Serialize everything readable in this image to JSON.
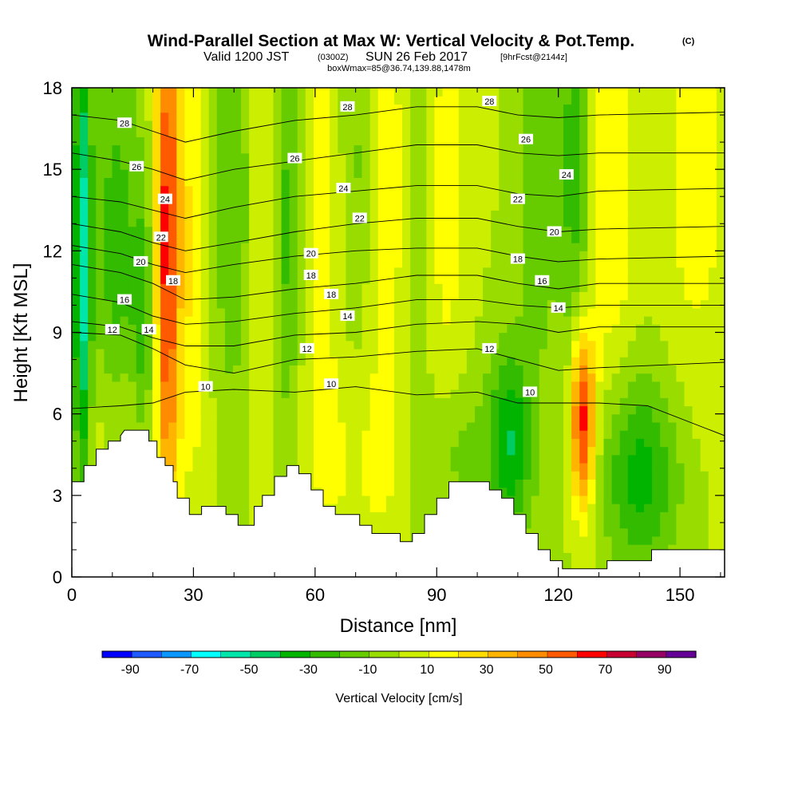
{
  "title": {
    "main": "Wind-Parallel Section at Max W: Vertical Velocity & Pot.Temp.",
    "copyright": "(C)",
    "valid_prefix": "Valid 1200 JST",
    "valid_utc": "(0300Z)",
    "valid_date": "SUN 26 Feb 2017",
    "fcst": "[9hrFcst@2144z]",
    "box": "boxWmax=85@36.74,139.88,1478m"
  },
  "chart_data": {
    "type": "heatmap",
    "xlabel": "Distance [nm]",
    "ylabel": "Height [Kft MSL]",
    "xlim": [
      0,
      161
    ],
    "ylim": [
      0,
      18
    ],
    "xticks": [
      0,
      30,
      60,
      90,
      120,
      150
    ],
    "yticks": [
      0,
      3,
      6,
      9,
      12,
      15,
      18
    ],
    "xtick_labels": [
      "0",
      "30",
      "60",
      "90",
      "120",
      "150"
    ],
    "ytick_labels": [
      "0",
      "3",
      "6",
      "9",
      "12",
      "15",
      "18"
    ],
    "colorbar": {
      "label": "Vertical Velocity [cm/s]",
      "levels": [
        -100,
        -80,
        -60,
        -40,
        -20,
        -10,
        -5,
        5,
        10,
        20,
        40,
        60,
        80,
        100
      ],
      "bins": [
        -90,
        -80,
        -70,
        -60,
        -50,
        -40,
        -30,
        -20,
        -10,
        0,
        10,
        20,
        30,
        40,
        50,
        60,
        70,
        80,
        90
      ],
      "tick_labels": [
        "-90",
        "-70",
        "-50",
        "-30",
        "-10",
        "10",
        "30",
        "50",
        "70",
        "90"
      ],
      "colors": [
        "#0000ff",
        "#1e5aff",
        "#0a96ff",
        "#00ffff",
        "#00e6aa",
        "#00cc66",
        "#00b400",
        "#33bb00",
        "#66cc00",
        "#99dd00",
        "#ccee00",
        "#ffff00",
        "#ffdd00",
        "#ffb400",
        "#ff8c00",
        "#ff5a00",
        "#ff0000",
        "#c80032",
        "#960064",
        "#640096"
      ]
    },
    "terrain": [
      {
        "x": 0,
        "h": 3.5
      },
      {
        "x": 3,
        "h": 3.5
      },
      {
        "x": 3,
        "h": 4.1
      },
      {
        "x": 6,
        "h": 4.1
      },
      {
        "x": 6,
        "h": 4.7
      },
      {
        "x": 9,
        "h": 4.7
      },
      {
        "x": 9,
        "h": 5.0
      },
      {
        "x": 12,
        "h": 5.0
      },
      {
        "x": 12,
        "h": 5.2
      },
      {
        "x": 13,
        "h": 5.4
      },
      {
        "x": 19,
        "h": 5.4
      },
      {
        "x": 19,
        "h": 5.0
      },
      {
        "x": 21,
        "h": 5.0
      },
      {
        "x": 21,
        "h": 4.4
      },
      {
        "x": 23,
        "h": 4.4
      },
      {
        "x": 23,
        "h": 4.1
      },
      {
        "x": 25,
        "h": 4.1
      },
      {
        "x": 25,
        "h": 3.5
      },
      {
        "x": 26,
        "h": 3.5
      },
      {
        "x": 26,
        "h": 2.9
      },
      {
        "x": 29,
        "h": 2.9
      },
      {
        "x": 29,
        "h": 2.3
      },
      {
        "x": 32,
        "h": 2.3
      },
      {
        "x": 32,
        "h": 2.6
      },
      {
        "x": 38,
        "h": 2.6
      },
      {
        "x": 38,
        "h": 2.3
      },
      {
        "x": 41,
        "h": 2.3
      },
      {
        "x": 41,
        "h": 1.9
      },
      {
        "x": 45,
        "h": 1.9
      },
      {
        "x": 45,
        "h": 2.6
      },
      {
        "x": 47,
        "h": 2.6
      },
      {
        "x": 47,
        "h": 3.0
      },
      {
        "x": 50,
        "h": 3.0
      },
      {
        "x": 50,
        "h": 3.7
      },
      {
        "x": 53,
        "h": 3.7
      },
      {
        "x": 53,
        "h": 4.1
      },
      {
        "x": 56,
        "h": 4.1
      },
      {
        "x": 56,
        "h": 3.8
      },
      {
        "x": 59,
        "h": 3.8
      },
      {
        "x": 59,
        "h": 3.2
      },
      {
        "x": 62,
        "h": 3.2
      },
      {
        "x": 62,
        "h": 2.6
      },
      {
        "x": 65,
        "h": 2.6
      },
      {
        "x": 65,
        "h": 2.3
      },
      {
        "x": 71,
        "h": 2.3
      },
      {
        "x": 71,
        "h": 1.9
      },
      {
        "x": 74,
        "h": 1.9
      },
      {
        "x": 74,
        "h": 1.6
      },
      {
        "x": 81,
        "h": 1.6
      },
      {
        "x": 81,
        "h": 1.3
      },
      {
        "x": 84,
        "h": 1.3
      },
      {
        "x": 84,
        "h": 1.6
      },
      {
        "x": 87,
        "h": 1.6
      },
      {
        "x": 87,
        "h": 2.3
      },
      {
        "x": 90,
        "h": 2.3
      },
      {
        "x": 90,
        "h": 2.9
      },
      {
        "x": 93,
        "h": 2.9
      },
      {
        "x": 93,
        "h": 3.5
      },
      {
        "x": 103,
        "h": 3.5
      },
      {
        "x": 103,
        "h": 3.2
      },
      {
        "x": 106,
        "h": 3.2
      },
      {
        "x": 106,
        "h": 2.9
      },
      {
        "x": 109,
        "h": 2.9
      },
      {
        "x": 109,
        "h": 2.3
      },
      {
        "x": 112,
        "h": 2.3
      },
      {
        "x": 112,
        "h": 1.6
      },
      {
        "x": 115,
        "h": 1.6
      },
      {
        "x": 115,
        "h": 1.0
      },
      {
        "x": 118,
        "h": 1.0
      },
      {
        "x": 118,
        "h": 0.6
      },
      {
        "x": 121,
        "h": 0.6
      },
      {
        "x": 121,
        "h": 0.3
      },
      {
        "x": 132,
        "h": 0.3
      },
      {
        "x": 132,
        "h": 0.6
      },
      {
        "x": 143,
        "h": 0.6
      },
      {
        "x": 143,
        "h": 1.0
      },
      {
        "x": 161,
        "h": 1.0
      }
    ],
    "isentropes": [
      {
        "label": "10",
        "pts": [
          [
            0,
            6.2
          ],
          [
            12,
            6.3
          ],
          [
            20,
            6.4
          ],
          [
            28,
            6.8
          ],
          [
            40,
            6.9
          ],
          [
            55,
            6.8
          ],
          [
            70,
            7.0
          ],
          [
            85,
            6.7
          ],
          [
            100,
            6.8
          ],
          [
            110,
            6.4
          ],
          [
            120,
            6.4
          ],
          [
            130,
            6.4
          ],
          [
            142,
            6.3
          ],
          [
            161,
            5.2
          ]
        ],
        "lx": 33,
        "ly": 7.0
      },
      {
        "label": "12",
        "pts": [
          [
            0,
            9.0
          ],
          [
            12,
            8.9
          ],
          [
            20,
            8.4
          ],
          [
            28,
            7.8
          ],
          [
            40,
            7.5
          ],
          [
            55,
            8.0
          ],
          [
            70,
            8.1
          ],
          [
            85,
            8.3
          ],
          [
            100,
            8.4
          ],
          [
            110,
            8.0
          ],
          [
            120,
            7.6
          ],
          [
            130,
            7.7
          ],
          [
            161,
            7.9
          ]
        ],
        "lx": 58,
        "ly": 8.4
      },
      {
        "label": "14",
        "pts": [
          [
            0,
            9.4
          ],
          [
            12,
            9.2
          ],
          [
            20,
            8.8
          ],
          [
            28,
            8.5
          ],
          [
            40,
            8.5
          ],
          [
            55,
            8.9
          ],
          [
            70,
            9.0
          ],
          [
            85,
            9.3
          ],
          [
            100,
            9.4
          ],
          [
            110,
            9.3
          ],
          [
            120,
            9.0
          ],
          [
            130,
            9.2
          ],
          [
            161,
            9.2
          ]
        ],
        "lx": 68,
        "ly": 9.5
      },
      {
        "label": "16",
        "pts": [
          [
            0,
            10.4
          ],
          [
            12,
            10.1
          ],
          [
            20,
            9.6
          ],
          [
            28,
            9.3
          ],
          [
            40,
            9.4
          ],
          [
            55,
            9.7
          ],
          [
            70,
            9.9
          ],
          [
            85,
            10.2
          ],
          [
            100,
            10.2
          ],
          [
            110,
            10.0
          ],
          [
            120,
            9.9
          ],
          [
            130,
            10.0
          ],
          [
            161,
            10.0
          ]
        ],
        "lx": 115,
        "ly": 10.8
      },
      {
        "label": "18",
        "pts": [
          [
            0,
            11.5
          ],
          [
            12,
            11.2
          ],
          [
            20,
            10.8
          ],
          [
            28,
            10.2
          ],
          [
            40,
            10.3
          ],
          [
            55,
            10.6
          ],
          [
            70,
            10.8
          ],
          [
            85,
            11.1
          ],
          [
            100,
            11.1
          ],
          [
            110,
            10.8
          ],
          [
            120,
            10.6
          ],
          [
            130,
            10.8
          ],
          [
            161,
            10.8
          ]
        ],
        "lx": 64,
        "ly": 10.4
      },
      {
        "label": "20",
        "pts": [
          [
            0,
            12.2
          ],
          [
            12,
            11.9
          ],
          [
            20,
            11.5
          ],
          [
            28,
            11.2
          ],
          [
            40,
            11.5
          ],
          [
            55,
            11.8
          ],
          [
            70,
            12.0
          ],
          [
            85,
            12.1
          ],
          [
            100,
            12.1
          ],
          [
            110,
            11.8
          ],
          [
            120,
            11.6
          ],
          [
            130,
            11.7
          ],
          [
            161,
            11.8
          ]
        ],
        "lx": 119,
        "ly": 12.5
      },
      {
        "label": "22",
        "pts": [
          [
            0,
            13.0
          ],
          [
            12,
            12.7
          ],
          [
            20,
            12.3
          ],
          [
            28,
            12.0
          ],
          [
            40,
            12.3
          ],
          [
            55,
            12.7
          ],
          [
            70,
            13.0
          ],
          [
            85,
            13.2
          ],
          [
            100,
            13.2
          ],
          [
            110,
            12.9
          ],
          [
            120,
            12.7
          ],
          [
            130,
            12.8
          ],
          [
            161,
            12.9
          ]
        ],
        "lx": 71,
        "ly": 13.2
      },
      {
        "label": "24",
        "pts": [
          [
            0,
            14.0
          ],
          [
            12,
            13.8
          ],
          [
            20,
            13.5
          ],
          [
            28,
            13.2
          ],
          [
            40,
            13.6
          ],
          [
            55,
            14.0
          ],
          [
            70,
            14.2
          ],
          [
            85,
            14.4
          ],
          [
            100,
            14.4
          ],
          [
            110,
            14.1
          ],
          [
            120,
            14.0
          ],
          [
            130,
            14.2
          ],
          [
            161,
            14.3
          ]
        ],
        "lx": 67,
        "ly": 14.3
      },
      {
        "label": "26",
        "pts": [
          [
            0,
            15.6
          ],
          [
            12,
            15.3
          ],
          [
            20,
            15.0
          ],
          [
            28,
            14.6
          ],
          [
            40,
            15.0
          ],
          [
            55,
            15.3
          ],
          [
            70,
            15.6
          ],
          [
            85,
            15.9
          ],
          [
            100,
            15.9
          ],
          [
            110,
            15.6
          ],
          [
            120,
            15.5
          ],
          [
            130,
            15.6
          ],
          [
            161,
            15.6
          ]
        ],
        "lx": 55,
        "ly": 15.4
      },
      {
        "label": "28",
        "pts": [
          [
            0,
            17.0
          ],
          [
            12,
            16.8
          ],
          [
            20,
            16.4
          ],
          [
            28,
            16.0
          ],
          [
            40,
            16.4
          ],
          [
            55,
            16.8
          ],
          [
            70,
            17.0
          ],
          [
            85,
            17.3
          ],
          [
            100,
            17.3
          ],
          [
            110,
            17.0
          ],
          [
            120,
            16.9
          ],
          [
            130,
            17.0
          ],
          [
            161,
            17.1
          ]
        ],
        "lx": 68,
        "ly": 17.3
      }
    ],
    "contour_labels": [
      {
        "text": "28",
        "x": 13,
        "y": 16.7
      },
      {
        "text": "26",
        "x": 16,
        "y": 15.1
      },
      {
        "text": "24",
        "x": 23,
        "y": 13.9
      },
      {
        "text": "22",
        "x": 22,
        "y": 12.5
      },
      {
        "text": "20",
        "x": 17,
        "y": 11.6
      },
      {
        "text": "18",
        "x": 25,
        "y": 10.9
      },
      {
        "text": "16",
        "x": 13,
        "y": 10.2
      },
      {
        "text": "12",
        "x": 10,
        "y": 9.1
      },
      {
        "text": "14",
        "x": 19,
        "y": 9.1
      },
      {
        "text": "28",
        "x": 103,
        "y": 17.5
      },
      {
        "text": "26",
        "x": 112,
        "y": 16.1
      },
      {
        "text": "24",
        "x": 122,
        "y": 14.8
      },
      {
        "text": "22",
        "x": 110,
        "y": 13.9
      },
      {
        "text": "20",
        "x": 119,
        "y": 12.7
      },
      {
        "text": "18",
        "x": 110,
        "y": 11.7
      },
      {
        "text": "16",
        "x": 116,
        "y": 10.9
      },
      {
        "text": "14",
        "x": 120,
        "y": 9.9
      },
      {
        "text": "12",
        "x": 103,
        "y": 8.4
      },
      {
        "text": "10",
        "x": 113,
        "y": 6.8
      },
      {
        "text": "28",
        "x": 68,
        "y": 17.3
      },
      {
        "text": "26",
        "x": 55,
        "y": 15.4
      },
      {
        "text": "24",
        "x": 67,
        "y": 14.3
      },
      {
        "text": "22",
        "x": 71,
        "y": 13.2
      },
      {
        "text": "20",
        "x": 59,
        "y": 11.9
      },
      {
        "text": "18",
        "x": 59,
        "y": 11.1
      },
      {
        "text": "18",
        "x": 64,
        "y": 10.4
      },
      {
        "text": "14",
        "x": 68,
        "y": 9.6
      },
      {
        "text": "12",
        "x": 58,
        "y": 8.4
      },
      {
        "text": "10",
        "x": 64,
        "y": 7.1
      },
      {
        "text": "10",
        "x": 33,
        "y": 7.0
      }
    ],
    "w_field": {
      "background": 0,
      "blobs": [
        {
          "x": 2.5,
          "y": 11.5,
          "sx": 1.6,
          "sy": 7,
          "w": -55
        },
        {
          "x": 11,
          "y": 12,
          "sx": 4,
          "sy": 6,
          "w": -25
        },
        {
          "x": 18,
          "y": 9,
          "sx": 2,
          "sy": 4,
          "w": -25
        },
        {
          "x": 23.5,
          "y": 12.5,
          "sx": 2.2,
          "sy": 7,
          "w": 65
        },
        {
          "x": 30,
          "y": 12,
          "sx": 3,
          "sy": 6,
          "w": 20
        },
        {
          "x": 40,
          "y": 14,
          "sx": 4,
          "sy": 6,
          "w": -20
        },
        {
          "x": 47,
          "y": 14,
          "sx": 3,
          "sy": 6,
          "w": 15
        },
        {
          "x": 53,
          "y": 13,
          "sx": 2.5,
          "sy": 6,
          "w": -25
        },
        {
          "x": 62,
          "y": 14,
          "sx": 4,
          "sy": 6,
          "w": 15
        },
        {
          "x": 70,
          "y": 15,
          "sx": 3,
          "sy": 5,
          "w": -15
        },
        {
          "x": 78,
          "y": 14,
          "sx": 4,
          "sy": 6,
          "w": 18
        },
        {
          "x": 85,
          "y": 11,
          "sx": 3,
          "sy": 8,
          "w": -12
        },
        {
          "x": 92,
          "y": 14,
          "sx": 4,
          "sy": 6,
          "w": 15
        },
        {
          "x": 108,
          "y": 5,
          "sx": 4,
          "sy": 2.5,
          "w": -40
        },
        {
          "x": 115,
          "y": 15,
          "sx": 3,
          "sy": 5,
          "w": -20
        },
        {
          "x": 124,
          "y": 15,
          "sx": 3,
          "sy": 6,
          "w": -25
        },
        {
          "x": 126,
          "y": 5.8,
          "sx": 2.2,
          "sy": 2.4,
          "w": 70
        },
        {
          "x": 133,
          "y": 15,
          "sx": 4,
          "sy": 6,
          "w": 20
        },
        {
          "x": 140,
          "y": 3.8,
          "sx": 7,
          "sy": 2.5,
          "w": -35
        },
        {
          "x": 154,
          "y": 15,
          "sx": 6,
          "sy": 6,
          "w": 15
        },
        {
          "x": 12,
          "y": 5.5,
          "sx": 8,
          "sy": 2,
          "w": 12
        },
        {
          "x": 70,
          "y": 4,
          "sx": 12,
          "sy": 3,
          "w": 10
        },
        {
          "x": 95,
          "y": 4.5,
          "sx": 5,
          "sy": 2,
          "w": -15
        }
      ]
    }
  }
}
